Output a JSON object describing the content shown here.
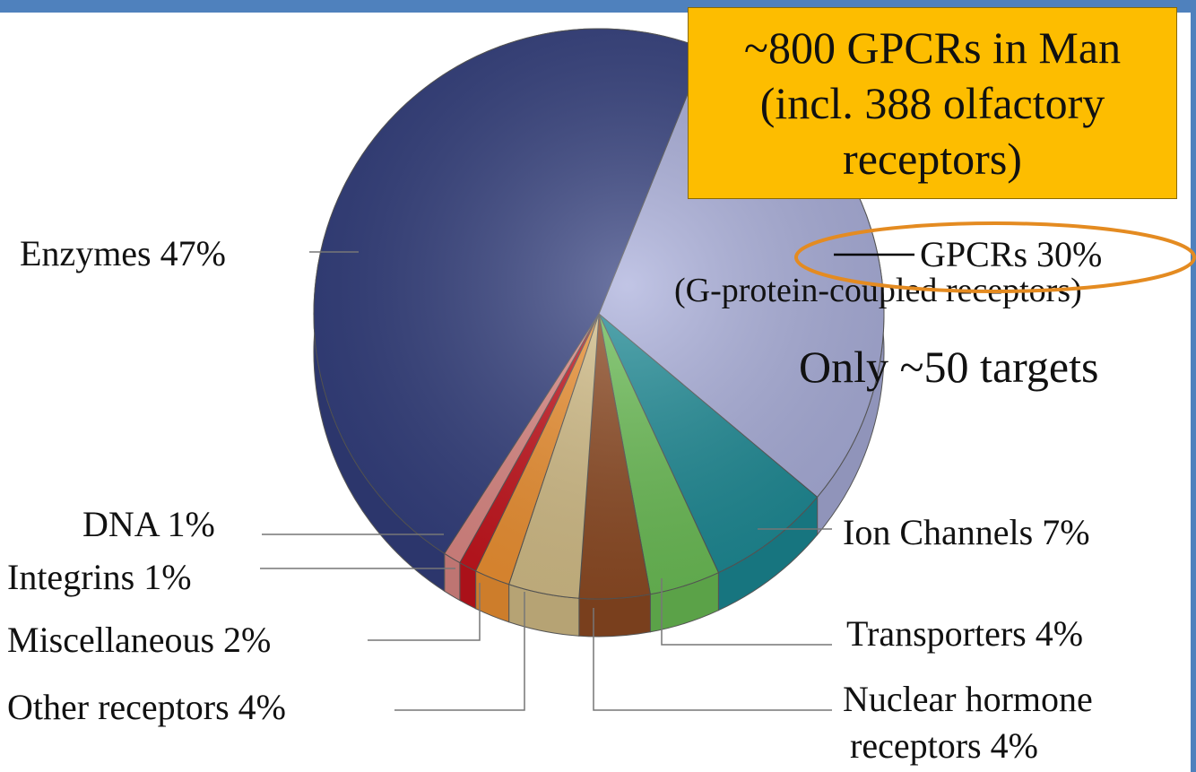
{
  "chart_data": {
    "type": "pie",
    "slices": [
      {
        "label": "Enzymes",
        "value": 47,
        "display": "Enzymes 47%",
        "color": "#34407f"
      },
      {
        "label": "GPCRs",
        "value": 30,
        "display": "GPCRs 30%",
        "color": "#a9aedb"
      },
      {
        "label": "Ion Channels",
        "value": 7,
        "display": "Ion Channels 7%",
        "color": "#1b8a95"
      },
      {
        "label": "Transporters",
        "value": 4,
        "display": "Transporters 4%",
        "color": "#6bbf55"
      },
      {
        "label": "Nuclear hormone receptors",
        "value": 4,
        "display_lines": [
          "Nuclear hormone",
          "receptors 4%"
        ],
        "color": "#8e4a22"
      },
      {
        "label": "Other receptors",
        "value": 4,
        "display": "Other receptors 4%",
        "color": "#d6c089"
      },
      {
        "label": "Miscellaneous",
        "value": 2,
        "display": "Miscellaneous 2%",
        "color": "#f19332"
      },
      {
        "label": "Integrins",
        "value": 1,
        "display": "Integrins 1%",
        "color": "#c8141d"
      },
      {
        "label": "DNA",
        "value": 1,
        "display": "DNA 1%",
        "color": "#e08a86"
      }
    ],
    "annotations": {
      "gpcr_subtitle": "(G-protein-coupled receptors)",
      "gpcr_note": "Only ~50 targets"
    }
  },
  "callout": {
    "lines": [
      "~800 GPCRs in Man",
      "(incl. 388 olfactory",
      "receptors)"
    ],
    "color": "#fdbd00"
  },
  "highlight_color": "#e48b21",
  "frame_color": "#4f81bd"
}
